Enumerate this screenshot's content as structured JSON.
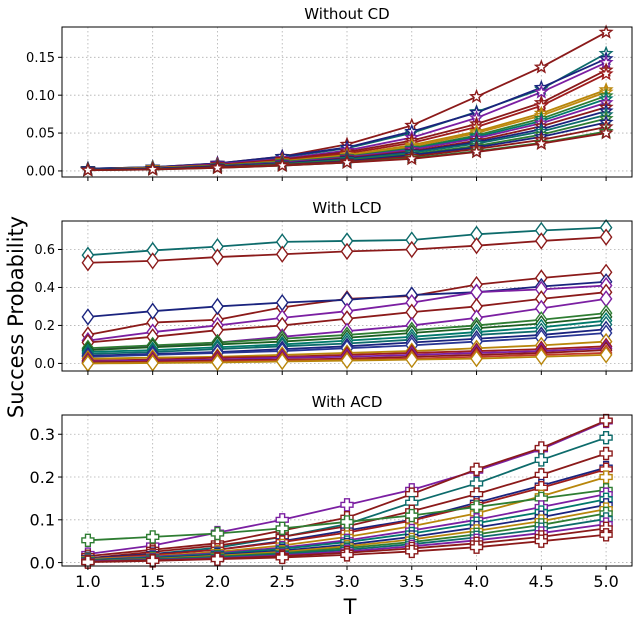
{
  "figure": {
    "ylabel": "Success Probability",
    "xlabel": "T"
  },
  "chart_data": [
    {
      "type": "line",
      "title": "Without CD",
      "xlabel": "",
      "ylabel": "",
      "marker": "star",
      "grid": true,
      "x": [
        1.0,
        1.5,
        2.0,
        2.5,
        3.0,
        3.5,
        4.0,
        4.5,
        5.0
      ],
      "xlim": [
        0.8,
        5.2
      ],
      "ylim": [
        -0.008,
        0.19
      ],
      "xticks": [
        "1.0",
        "1.5",
        "2.0",
        "2.5",
        "3.0",
        "3.5",
        "4.0",
        "4.5",
        "5.0"
      ],
      "yticks": [
        0.0,
        0.05,
        0.1,
        0.15
      ],
      "ytick_labels": [
        "0.00",
        "0.05",
        "0.10",
        "0.15"
      ],
      "series": [
        {
          "color": "#8b1a1a",
          "values": [
            0.003,
            0.005,
            0.01,
            0.019,
            0.035,
            0.06,
            0.098,
            0.137,
            0.183
          ]
        },
        {
          "color": "#0d6b6b",
          "values": [
            0.003,
            0.005,
            0.009,
            0.018,
            0.03,
            0.05,
            0.078,
            0.108,
            0.155
          ]
        },
        {
          "color": "#1a237e",
          "values": [
            0.003,
            0.005,
            0.01,
            0.019,
            0.031,
            0.052,
            0.077,
            0.11,
            0.148
          ]
        },
        {
          "color": "#7b1fa2",
          "values": [
            0.002,
            0.004,
            0.009,
            0.016,
            0.027,
            0.044,
            0.07,
            0.104,
            0.143
          ]
        },
        {
          "color": "#8b1a1a",
          "values": [
            0.002,
            0.004,
            0.008,
            0.015,
            0.025,
            0.04,
            0.062,
            0.09,
            0.133
          ]
        },
        {
          "color": "#9e1c1c",
          "values": [
            0.002,
            0.004,
            0.008,
            0.014,
            0.023,
            0.037,
            0.058,
            0.086,
            0.128
          ]
        },
        {
          "color": "#b8860b",
          "values": [
            0.002,
            0.004,
            0.007,
            0.013,
            0.021,
            0.034,
            0.052,
            0.076,
            0.107
          ]
        },
        {
          "color": "#c08a10",
          "values": [
            0.002,
            0.004,
            0.007,
            0.012,
            0.02,
            0.032,
            0.05,
            0.073,
            0.104
          ]
        },
        {
          "color": "#2e7d32",
          "values": [
            0.002,
            0.003,
            0.007,
            0.012,
            0.019,
            0.03,
            0.047,
            0.069,
            0.099
          ]
        },
        {
          "color": "#00796b",
          "values": [
            0.002,
            0.003,
            0.006,
            0.011,
            0.018,
            0.029,
            0.045,
            0.066,
            0.095
          ]
        },
        {
          "color": "#7b1fa2",
          "values": [
            0.002,
            0.003,
            0.006,
            0.011,
            0.018,
            0.028,
            0.043,
            0.063,
            0.09
          ]
        },
        {
          "color": "#8b1a1a",
          "values": [
            0.002,
            0.003,
            0.006,
            0.01,
            0.017,
            0.026,
            0.04,
            0.059,
            0.084
          ]
        },
        {
          "color": "#1a237e",
          "values": [
            0.002,
            0.003,
            0.006,
            0.01,
            0.016,
            0.025,
            0.038,
            0.055,
            0.079
          ]
        },
        {
          "color": "#0d6b6b",
          "values": [
            0.002,
            0.003,
            0.005,
            0.009,
            0.015,
            0.024,
            0.036,
            0.052,
            0.074
          ]
        },
        {
          "color": "#2e7d32",
          "values": [
            0.002,
            0.003,
            0.005,
            0.009,
            0.014,
            0.022,
            0.033,
            0.048,
            0.069
          ]
        },
        {
          "color": "#1a237e",
          "values": [
            0.002,
            0.003,
            0.005,
            0.008,
            0.013,
            0.021,
            0.031,
            0.045,
            0.064
          ]
        },
        {
          "color": "#8b1a1a",
          "values": [
            0.001,
            0.002,
            0.005,
            0.008,
            0.012,
            0.019,
            0.029,
            0.041,
            0.058
          ]
        },
        {
          "color": "#2e7d32",
          "values": [
            0.001,
            0.002,
            0.004,
            0.007,
            0.011,
            0.017,
            0.026,
            0.037,
            0.052
          ]
        },
        {
          "color": "#8b1a1a",
          "values": [
            0.001,
            0.002,
            0.004,
            0.007,
            0.011,
            0.016,
            0.025,
            0.036,
            0.05
          ]
        }
      ]
    },
    {
      "type": "line",
      "title": "With LCD",
      "xlabel": "",
      "ylabel": "",
      "marker": "diamond",
      "grid": true,
      "x": [
        1.0,
        1.5,
        2.0,
        2.5,
        3.0,
        3.5,
        4.0,
        4.5,
        5.0
      ],
      "xlim": [
        0.8,
        5.2
      ],
      "ylim": [
        -0.04,
        0.75
      ],
      "xticks": [
        "1.0",
        "1.5",
        "2.0",
        "2.5",
        "3.0",
        "3.5",
        "4.0",
        "4.5",
        "5.0"
      ],
      "yticks": [
        0.0,
        0.2,
        0.4,
        0.6
      ],
      "ytick_labels": [
        "0.0",
        "0.2",
        "0.4",
        "0.6"
      ],
      "series": [
        {
          "color": "#0d6b6b",
          "values": [
            0.57,
            0.595,
            0.615,
            0.64,
            0.645,
            0.65,
            0.68,
            0.7,
            0.715
          ]
        },
        {
          "color": "#8b1a1a",
          "values": [
            0.53,
            0.54,
            0.56,
            0.575,
            0.59,
            0.6,
            0.62,
            0.645,
            0.665
          ]
        },
        {
          "color": "#8b1a1a",
          "values": [
            0.15,
            0.215,
            0.23,
            0.295,
            0.34,
            0.355,
            0.415,
            0.45,
            0.48
          ]
        },
        {
          "color": "#1a237e",
          "values": [
            0.245,
            0.275,
            0.3,
            0.32,
            0.335,
            0.36,
            0.375,
            0.405,
            0.43
          ]
        },
        {
          "color": "#7b1fa2",
          "values": [
            0.12,
            0.165,
            0.2,
            0.24,
            0.275,
            0.32,
            0.375,
            0.39,
            0.41
          ]
        },
        {
          "color": "#8b1a1a",
          "values": [
            0.11,
            0.14,
            0.175,
            0.2,
            0.235,
            0.27,
            0.3,
            0.34,
            0.375
          ]
        },
        {
          "color": "#7b1fa2",
          "values": [
            0.07,
            0.09,
            0.11,
            0.14,
            0.17,
            0.2,
            0.24,
            0.29,
            0.34
          ]
        },
        {
          "color": "#2e7d32",
          "values": [
            0.08,
            0.095,
            0.11,
            0.13,
            0.15,
            0.175,
            0.2,
            0.23,
            0.265
          ]
        },
        {
          "color": "#1b5e20",
          "values": [
            0.07,
            0.085,
            0.1,
            0.115,
            0.135,
            0.16,
            0.185,
            0.21,
            0.245
          ]
        },
        {
          "color": "#00796b",
          "values": [
            0.06,
            0.07,
            0.085,
            0.1,
            0.12,
            0.14,
            0.165,
            0.19,
            0.225
          ]
        },
        {
          "color": "#0d6b6b",
          "values": [
            0.05,
            0.06,
            0.075,
            0.09,
            0.105,
            0.125,
            0.15,
            0.17,
            0.205
          ]
        },
        {
          "color": "#1a237e",
          "values": [
            0.04,
            0.05,
            0.06,
            0.075,
            0.09,
            0.11,
            0.13,
            0.15,
            0.18
          ]
        },
        {
          "color": "#283593",
          "values": [
            0.035,
            0.045,
            0.055,
            0.065,
            0.08,
            0.095,
            0.115,
            0.135,
            0.16
          ]
        },
        {
          "color": "#b8860b",
          "values": [
            0.025,
            0.03,
            0.035,
            0.045,
            0.055,
            0.065,
            0.08,
            0.095,
            0.115
          ]
        },
        {
          "color": "#9e1c1c",
          "values": [
            0.015,
            0.02,
            0.03,
            0.035,
            0.045,
            0.055,
            0.065,
            0.075,
            0.09
          ]
        },
        {
          "color": "#7b1fa2",
          "values": [
            0.01,
            0.015,
            0.02,
            0.03,
            0.035,
            0.045,
            0.055,
            0.065,
            0.08
          ]
        },
        {
          "color": "#8b1a1a",
          "values": [
            0.005,
            0.01,
            0.015,
            0.02,
            0.025,
            0.035,
            0.045,
            0.055,
            0.07
          ]
        },
        {
          "color": "#c0392b",
          "values": [
            0.0,
            0.005,
            0.01,
            0.015,
            0.02,
            0.025,
            0.035,
            0.045,
            0.055
          ]
        },
        {
          "color": "#b8860b",
          "values": [
            0.0,
            0.002,
            0.005,
            0.01,
            0.015,
            0.02,
            0.025,
            0.035,
            0.045
          ]
        }
      ]
    },
    {
      "type": "line",
      "title": "With ACD",
      "xlabel": "T",
      "ylabel": "",
      "marker": "plus",
      "grid": true,
      "x": [
        1.0,
        1.5,
        2.0,
        2.5,
        3.0,
        3.5,
        4.0,
        4.5,
        5.0
      ],
      "xlim": [
        0.8,
        5.2
      ],
      "ylim": [
        -0.008,
        0.345
      ],
      "xticks": [
        "1.0",
        "1.5",
        "2.0",
        "2.5",
        "3.0",
        "3.5",
        "4.0",
        "4.5",
        "5.0"
      ],
      "yticks": [
        0.0,
        0.1,
        0.2,
        0.3
      ],
      "ytick_labels": [
        "0.0",
        "0.1",
        "0.2",
        "0.3"
      ],
      "series": [
        {
          "color": "#7b1fa2",
          "values": [
            0.02,
            0.04,
            0.07,
            0.1,
            0.135,
            0.17,
            0.215,
            0.265,
            0.33
          ]
        },
        {
          "color": "#8b1a1a",
          "values": [
            0.015,
            0.03,
            0.045,
            0.075,
            0.105,
            0.16,
            0.218,
            0.268,
            0.332
          ]
        },
        {
          "color": "#0d6b6b",
          "values": [
            0.01,
            0.02,
            0.035,
            0.06,
            0.09,
            0.14,
            0.185,
            0.24,
            0.292
          ]
        },
        {
          "color": "#8b1a1a",
          "values": [
            0.01,
            0.025,
            0.04,
            0.06,
            0.085,
            0.12,
            0.16,
            0.205,
            0.255
          ]
        },
        {
          "color": "#1a237e",
          "values": [
            0.01,
            0.02,
            0.03,
            0.05,
            0.075,
            0.1,
            0.14,
            0.18,
            0.222
          ]
        },
        {
          "color": "#9e1c1c",
          "values": [
            0.008,
            0.018,
            0.03,
            0.048,
            0.07,
            0.098,
            0.135,
            0.175,
            0.218
          ]
        },
        {
          "color": "#b8860b",
          "values": [
            0.008,
            0.015,
            0.025,
            0.04,
            0.06,
            0.085,
            0.115,
            0.155,
            0.2
          ]
        },
        {
          "color": "#2e7d32",
          "values": [
            0.052,
            0.06,
            0.068,
            0.08,
            0.095,
            0.11,
            0.13,
            0.15,
            0.17
          ]
        },
        {
          "color": "#7b1fa2",
          "values": [
            0.006,
            0.014,
            0.022,
            0.035,
            0.052,
            0.075,
            0.1,
            0.13,
            0.16
          ]
        },
        {
          "color": "#00796b",
          "values": [
            0.006,
            0.012,
            0.02,
            0.032,
            0.048,
            0.068,
            0.092,
            0.118,
            0.148
          ]
        },
        {
          "color": "#1a237e",
          "values": [
            0.005,
            0.01,
            0.018,
            0.028,
            0.042,
            0.06,
            0.082,
            0.106,
            0.135
          ]
        },
        {
          "color": "#b8860b",
          "values": [
            0.004,
            0.009,
            0.016,
            0.025,
            0.038,
            0.054,
            0.074,
            0.097,
            0.125
          ]
        },
        {
          "color": "#2e7d32",
          "values": [
            0.004,
            0.008,
            0.014,
            0.022,
            0.034,
            0.048,
            0.066,
            0.088,
            0.115
          ]
        },
        {
          "color": "#0d6b6b",
          "values": [
            0.003,
            0.007,
            0.012,
            0.02,
            0.03,
            0.043,
            0.059,
            0.078,
            0.102
          ]
        },
        {
          "color": "#7b1fa2",
          "values": [
            0.003,
            0.006,
            0.01,
            0.017,
            0.026,
            0.038,
            0.052,
            0.069,
            0.09
          ]
        },
        {
          "color": "#8b1a1a",
          "values": [
            0.002,
            0.005,
            0.009,
            0.015,
            0.023,
            0.033,
            0.045,
            0.06,
            0.08
          ]
        },
        {
          "color": "#8b1a1a",
          "values": [
            0.001,
            0.004,
            0.008,
            0.012,
            0.018,
            0.026,
            0.036,
            0.05,
            0.065
          ]
        }
      ]
    }
  ]
}
